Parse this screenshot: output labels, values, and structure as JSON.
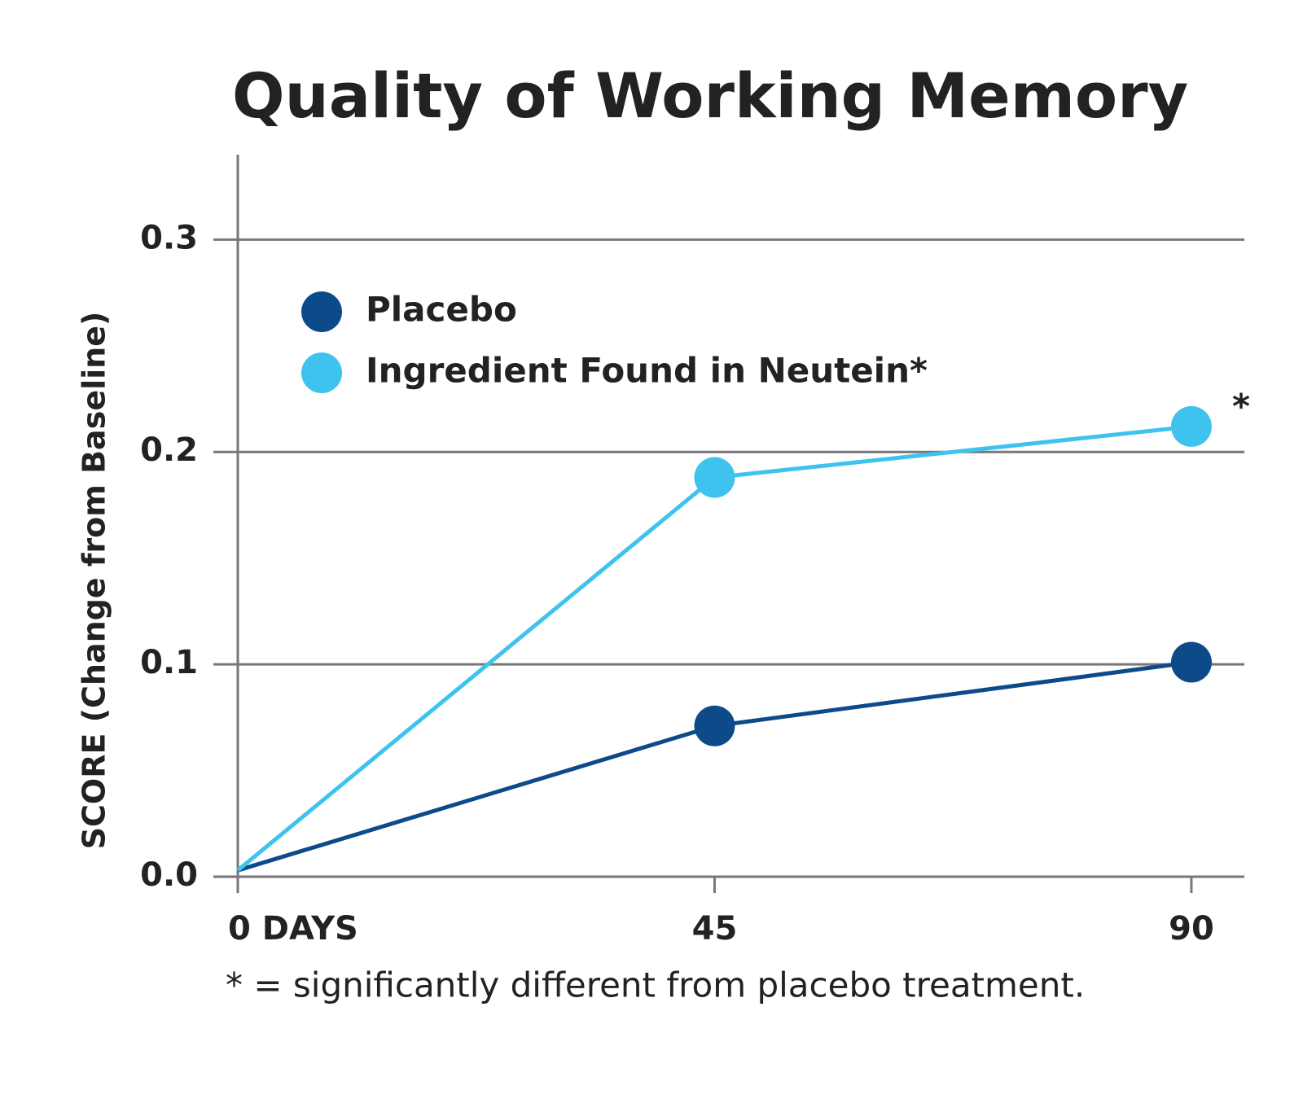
{
  "chart_data": {
    "type": "line",
    "title": "Quality of Working Memory",
    "y_label": "SCORE   (Change from Baseline)",
    "footnote": "* = significantly different from placebo treatment.",
    "annotation": "*",
    "x": [
      0,
      45,
      90
    ],
    "xlim": [
      0,
      95
    ],
    "xticks": [
      {
        "value": 0,
        "label": "0 DAYS"
      },
      45,
      90
    ],
    "ylim": [
      0,
      0.34
    ],
    "yticks": [
      {
        "value": 0,
        "label": "0.0"
      },
      0.1,
      0.2,
      0.3
    ],
    "grid": true,
    "legend": "upper left",
    "series": [
      {
        "name": "Placebo",
        "color": "#0d4a8a",
        "values": [
          0.003,
          0.071,
          0.101
        ]
      },
      {
        "name": "Ingredient Found in Neutein*",
        "color": "#3ec3ef",
        "values": [
          0.003,
          0.188,
          0.212
        ]
      }
    ]
  }
}
